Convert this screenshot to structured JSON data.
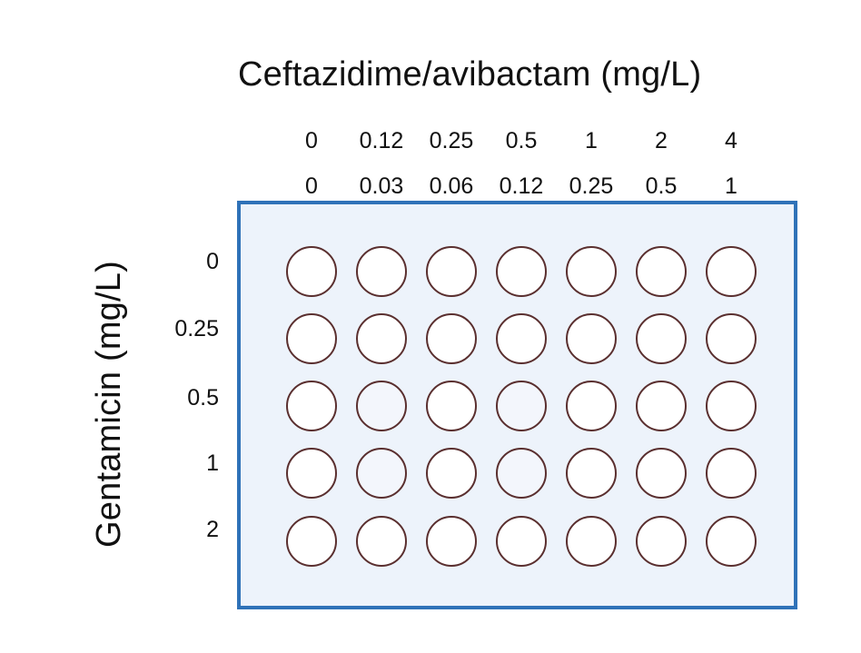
{
  "axis": {
    "x_title": "Ceftazidime/avibactam (mg/L)",
    "y_title": "Gentamicin (mg/L)"
  },
  "columns": {
    "ceftazidime": [
      "0",
      "0.12",
      "0.25",
      "0.5",
      "1",
      "2",
      "4"
    ],
    "avibactam": [
      "0",
      "0.03",
      "0.06",
      "0.12",
      "0.25",
      "0.5",
      "1"
    ]
  },
  "rows": {
    "gentamicin": [
      "0",
      "0.25",
      "0.5",
      "1",
      "2"
    ]
  },
  "plate": {
    "rows": 5,
    "cols": 7,
    "faint_wells": [
      [
        2,
        1
      ],
      [
        2,
        3
      ],
      [
        3,
        1
      ],
      [
        3,
        3
      ]
    ]
  },
  "colors": {
    "plate_border": "#2f72b8",
    "plate_fill": "#edf3fb",
    "well_border": "#5a2f2f",
    "well_fill": "#ffffff",
    "well_faint_fill": "#f3f6fc"
  }
}
